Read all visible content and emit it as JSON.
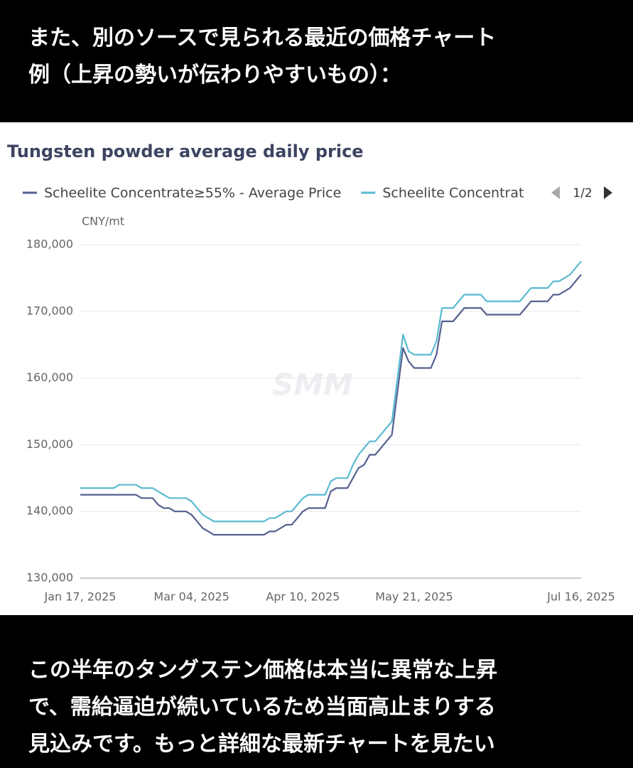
{
  "intro_lines": [
    "また、別のソースで見られる最近の価格チャート",
    "例（上昇の勢いが伝わりやすいもの）："
  ],
  "chart_data": {
    "type": "line",
    "title": "Tungsten powder average daily price",
    "y_unit": "CNY/mt",
    "watermark": "SMM",
    "legend_page": "1/2",
    "grid": true,
    "categories": [
      "Jan 17, 2025",
      null,
      null,
      null,
      null,
      null,
      null,
      null,
      null,
      null,
      null,
      null,
      null,
      null,
      null,
      null,
      null,
      null,
      null,
      null,
      "Mar 04, 2025",
      null,
      null,
      null,
      null,
      null,
      null,
      null,
      null,
      null,
      null,
      null,
      null,
      null,
      null,
      null,
      null,
      null,
      null,
      null,
      "Apr 10, 2025",
      null,
      null,
      null,
      null,
      null,
      null,
      null,
      null,
      null,
      null,
      null,
      null,
      null,
      null,
      null,
      null,
      null,
      null,
      null,
      "May 21, 2025",
      null,
      null,
      null,
      null,
      null,
      null,
      null,
      null,
      null,
      null,
      null,
      null,
      null,
      null,
      null,
      null,
      null,
      null,
      null,
      null,
      null,
      null,
      null,
      null,
      null,
      null,
      null,
      null,
      null,
      "Jul 16, 2025"
    ],
    "ylim": [
      130000,
      180000
    ],
    "yticks": [
      {
        "value": 130000,
        "label": "130,000"
      },
      {
        "value": 140000,
        "label": "140,000"
      },
      {
        "value": 150000,
        "label": "150,000"
      },
      {
        "value": 160000,
        "label": "160,000"
      },
      {
        "value": 170000,
        "label": "170,000"
      },
      {
        "value": 180000,
        "label": "180,000"
      }
    ],
    "series": [
      {
        "name": "Scheelite Concentrate≥55% - Average Price",
        "color": "#55608f",
        "values": [
          142500,
          142500,
          142500,
          142500,
          142500,
          142500,
          142500,
          142500,
          142500,
          142500,
          142500,
          142000,
          142000,
          142000,
          141000,
          140500,
          140500,
          140000,
          140000,
          140000,
          139500,
          138500,
          137500,
          137000,
          136500,
          136500,
          136500,
          136500,
          136500,
          136500,
          136500,
          136500,
          136500,
          136500,
          137000,
          137000,
          137500,
          138000,
          138000,
          139000,
          140000,
          140500,
          140500,
          140500,
          140500,
          143000,
          143500,
          143500,
          143500,
          145000,
          146500,
          147000,
          148500,
          148500,
          149500,
          150500,
          151500,
          158000,
          164500,
          162500,
          161500,
          161500,
          161500,
          161500,
          163500,
          168500,
          168500,
          168500,
          169500,
          170500,
          170500,
          170500,
          170500,
          169500,
          169500,
          169500,
          169500,
          169500,
          169500,
          169500,
          170500,
          171500,
          171500,
          171500,
          171500,
          172500,
          172500,
          173000,
          173500,
          174500,
          175500
        ]
      },
      {
        "name": "Scheelite Concentrat",
        "color": "#5bbad0",
        "values": [
          143500,
          143500,
          143500,
          143500,
          143500,
          143500,
          143500,
          144000,
          144000,
          144000,
          144000,
          143500,
          143500,
          143500,
          143000,
          142500,
          142000,
          142000,
          142000,
          142000,
          141500,
          140500,
          139500,
          139000,
          138500,
          138500,
          138500,
          138500,
          138500,
          138500,
          138500,
          138500,
          138500,
          138500,
          139000,
          139000,
          139500,
          140000,
          140000,
          141000,
          142000,
          142500,
          142500,
          142500,
          142500,
          144500,
          145000,
          145000,
          145000,
          147000,
          148500,
          149500,
          150500,
          150500,
          151500,
          152500,
          153500,
          160000,
          166500,
          164000,
          163500,
          163500,
          163500,
          163500,
          165500,
          170500,
          170500,
          170500,
          171500,
          172500,
          172500,
          172500,
          172500,
          171500,
          171500,
          171500,
          171500,
          171500,
          171500,
          171500,
          172500,
          173500,
          173500,
          173500,
          173500,
          174500,
          174500,
          175000,
          175500,
          176500,
          177500
        ]
      }
    ]
  },
  "outro_lines": [
    "この半年のタングステン価格は本当に異常な上昇",
    "で、需給逼迫が続いているため当面高止まりする",
    "見込みです。もっと詳細な最新チャートを見たい"
  ]
}
